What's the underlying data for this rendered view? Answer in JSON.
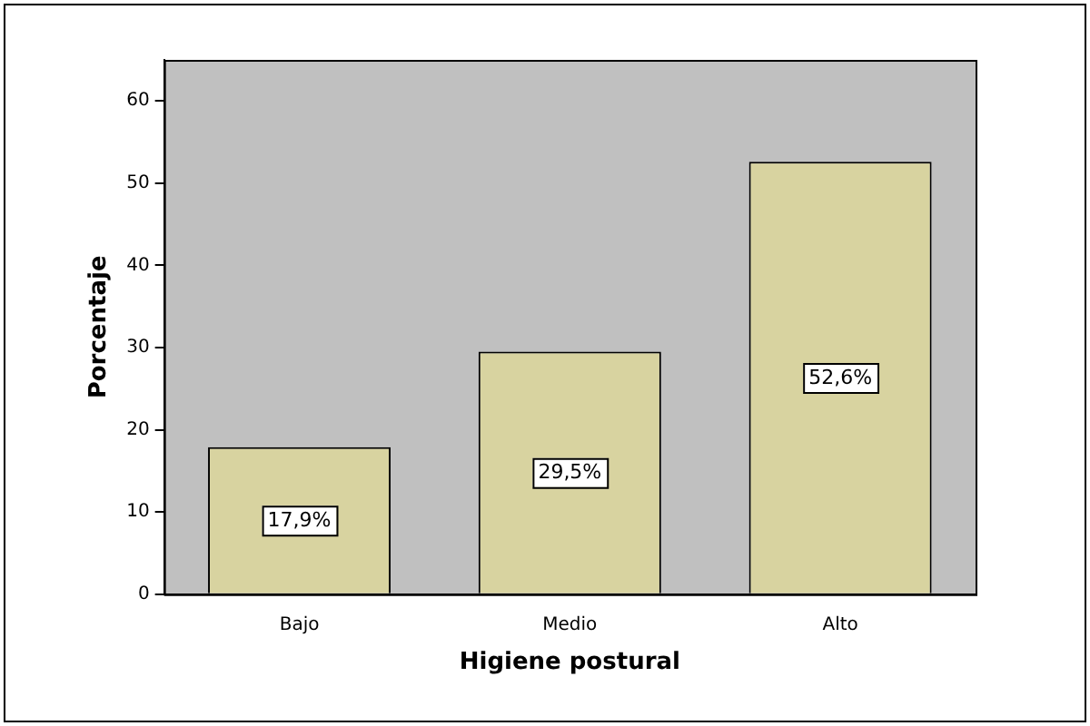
{
  "chart_data": {
    "type": "bar",
    "xlabel": "Higiene postural",
    "ylabel": "Porcentaje",
    "categories": [
      "Bajo",
      "Medio",
      "Alto"
    ],
    "values": [
      17.9,
      29.5,
      52.6
    ],
    "value_labels": [
      "17,9%",
      "29,5%",
      "52,6%"
    ],
    "color": "#d8d3a0",
    "ylim": [
      0,
      65
    ],
    "yticks": [
      0,
      10,
      20,
      30,
      40,
      50,
      60
    ],
    "grid": false,
    "legend": false
  }
}
